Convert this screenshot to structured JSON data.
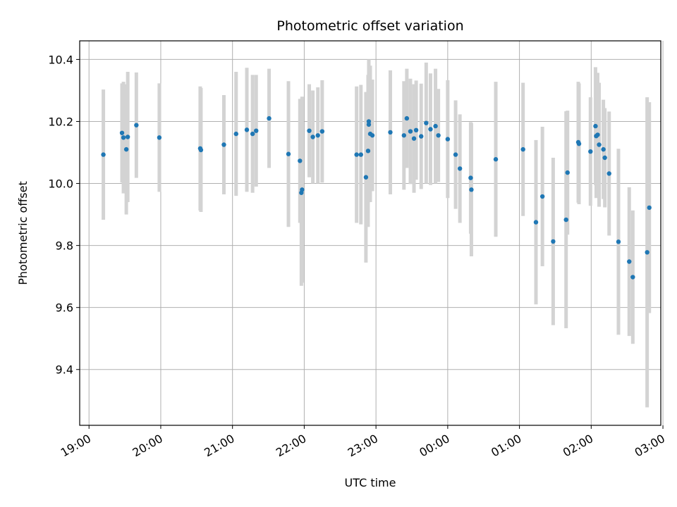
{
  "chart_data": {
    "type": "scatter",
    "title": "Photometric offset variation",
    "xlabel": "UTC time",
    "ylabel": "Photometric offset",
    "x_unit": "hours after 19:00 UTC",
    "xlim": [
      -0.13,
      7.97
    ],
    "ylim": [
      9.22,
      10.46
    ],
    "x_ticks": [
      0,
      1,
      2,
      3,
      4,
      5,
      6,
      7,
      8
    ],
    "x_tick_labels": [
      "19:00",
      "20:00",
      "21:00",
      "22:00",
      "23:00",
      "00:00",
      "01:00",
      "02:00",
      "03:00"
    ],
    "y_ticks": [
      9.4,
      9.6,
      9.8,
      10.0,
      10.2,
      10.4
    ],
    "y_tick_labels": [
      "9.4",
      "9.6",
      "9.8",
      "10.0",
      "10.2",
      "10.4"
    ],
    "grid": true,
    "marker_color": "#1f77b4",
    "errorbar_color": "#d3d3d3",
    "series": [
      {
        "x": [
          0.2,
          0.46,
          0.48,
          0.52,
          0.54,
          0.66,
          0.98,
          1.55,
          1.56,
          1.88,
          2.05,
          2.2,
          2.28,
          2.33,
          2.51,
          2.78,
          2.94,
          2.96,
          2.97,
          3.07,
          3.12,
          3.19,
          3.25,
          3.73,
          3.79,
          3.86,
          3.89,
          3.9,
          3.9,
          3.92,
          3.95,
          4.2,
          4.39,
          4.43,
          4.48,
          4.53,
          4.56,
          4.63,
          4.7,
          4.76,
          4.83,
          4.87,
          5.0,
          5.11,
          5.17,
          5.32,
          5.33,
          5.67,
          6.05,
          6.23,
          6.32,
          6.47,
          6.65,
          6.67,
          6.82,
          6.83,
          6.99,
          7.06,
          7.07,
          7.09,
          7.11,
          7.17,
          7.19,
          7.25,
          7.38,
          7.53,
          7.58,
          7.78,
          7.81
        ],
        "y": [
          10.093,
          10.163,
          10.148,
          10.11,
          10.15,
          10.188,
          10.148,
          10.113,
          10.108,
          10.125,
          10.16,
          10.173,
          10.16,
          10.17,
          10.21,
          10.095,
          10.073,
          9.97,
          9.98,
          10.17,
          10.15,
          10.155,
          10.168,
          10.093,
          10.093,
          10.02,
          10.105,
          10.19,
          10.2,
          10.16,
          10.155,
          10.165,
          10.155,
          10.21,
          10.168,
          10.145,
          10.172,
          10.152,
          10.195,
          10.175,
          10.185,
          10.155,
          10.143,
          10.093,
          10.048,
          10.018,
          9.98,
          10.078,
          10.11,
          9.875,
          9.958,
          9.813,
          9.883,
          10.035,
          10.133,
          10.128,
          10.103,
          10.185,
          10.153,
          10.157,
          10.125,
          10.11,
          10.083,
          10.032,
          9.812,
          9.748,
          9.698,
          9.778,
          9.922
        ],
        "yerr": [
          0.21,
          0.16,
          0.18,
          0.21,
          0.21,
          0.17,
          0.175,
          0.2,
          0.2,
          0.16,
          0.2,
          0.2,
          0.19,
          0.18,
          0.16,
          0.235,
          0.2,
          0.3,
          0.3,
          0.15,
          0.15,
          0.155,
          0.165,
          0.22,
          0.225,
          0.275,
          0.245,
          0.2,
          0.2,
          0.22,
          0.18,
          0.2,
          0.175,
          0.16,
          0.17,
          0.175,
          0.16,
          0.17,
          0.195,
          0.18,
          0.185,
          0.15,
          0.19,
          0.175,
          0.175,
          0.18,
          0.215,
          0.25,
          0.215,
          0.265,
          0.225,
          0.27,
          0.35,
          0.2,
          0.195,
          0.195,
          0.175,
          0.19,
          0.2,
          0.2,
          0.2,
          0.16,
          0.16,
          0.2,
          0.3,
          0.24,
          0.215,
          0.5,
          0.34
        ]
      }
    ]
  }
}
